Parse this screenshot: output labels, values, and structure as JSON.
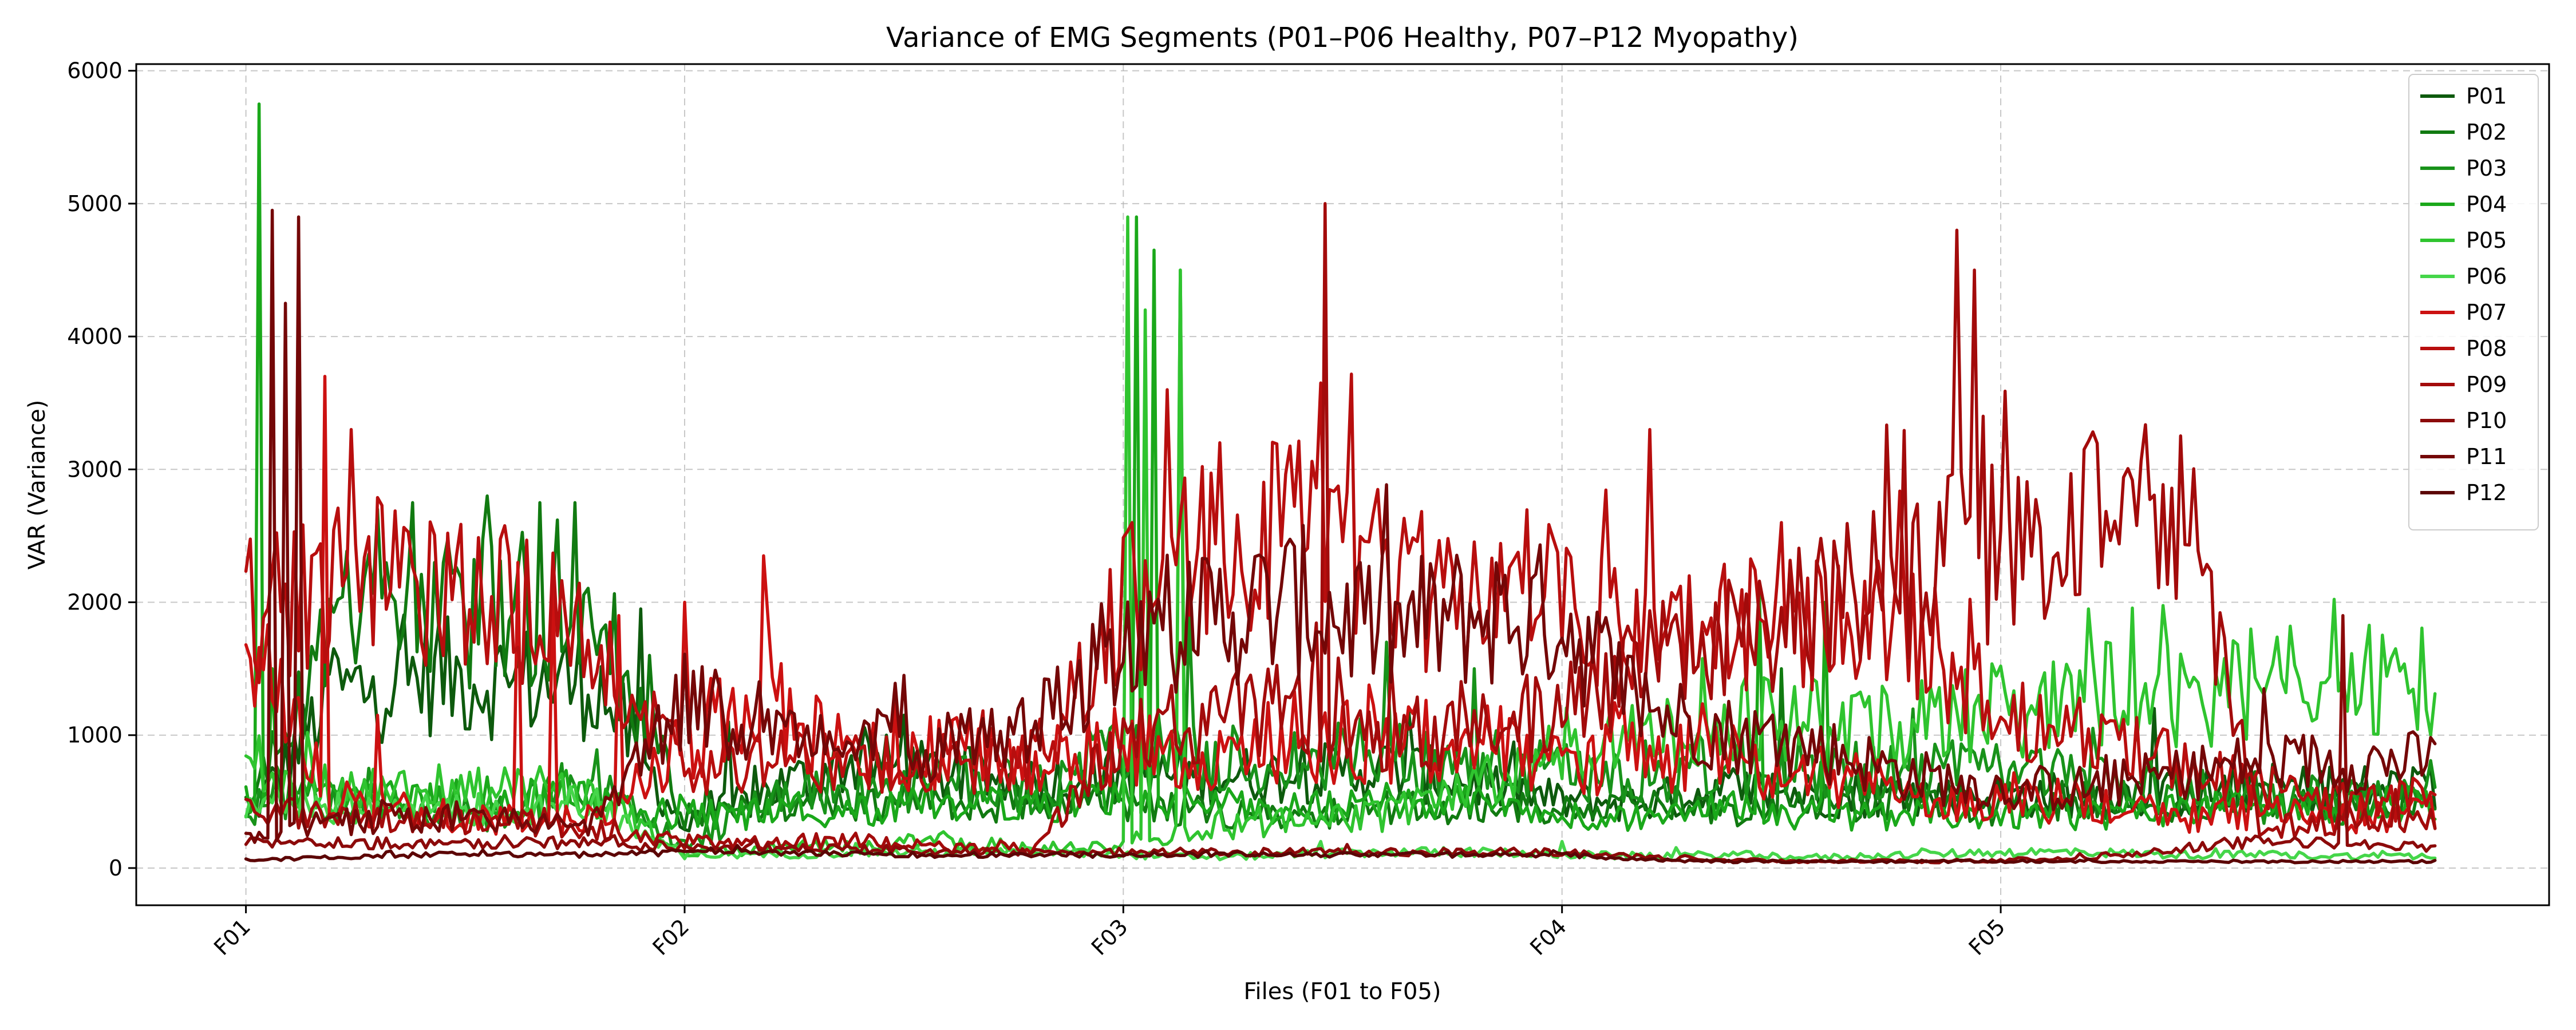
{
  "chart_data": {
    "type": "line",
    "title": "Variance of EMG Segments (P01–P06 Healthy, P07–P12 Myopathy)",
    "xlabel": "Files (F01 to F05)",
    "ylabel": "VAR (Variance)",
    "x_ticks": [
      "F01",
      "F02",
      "F03",
      "F04",
      "F05"
    ],
    "x_tick_positions": [
      0,
      100,
      200,
      300,
      400
    ],
    "xlim": [
      -25,
      525
    ],
    "ylim": [
      -280,
      6050
    ],
    "y_ticks": [
      0,
      1000,
      2000,
      3000,
      4000,
      5000,
      6000
    ],
    "grid": true,
    "legend_position": "top-right",
    "series": [
      {
        "name": "P01",
        "color": "#0d5a0d",
        "base": [
          350,
          1300,
          1450,
          1400,
          1400,
          300,
          600,
          800,
          700,
          650,
          700,
          700,
          700,
          750,
          650,
          500,
          500,
          600,
          550,
          550,
          550,
          550,
          550,
          600,
          600,
          600
        ],
        "amp": 0.32,
        "spikes": [
          [
            20,
            1650
          ],
          [
            44,
            1850
          ],
          [
            90,
            1950
          ],
          [
            110,
            1100
          ],
          [
            150,
            1150
          ],
          [
            265,
            1200
          ],
          [
            435,
            1200
          ]
        ]
      },
      {
        "name": "P02",
        "color": "#117a11",
        "base": [
          420,
          1900,
          1900,
          1950,
          1950,
          400,
          500,
          450,
          500,
          480,
          500,
          420,
          400,
          450,
          450,
          450,
          500,
          450,
          500,
          500,
          450,
          520,
          500,
          500,
          480,
          480
        ],
        "amp": 0.3,
        "spikes": [
          [
            30,
            2700
          ],
          [
            38,
            2750
          ],
          [
            55,
            2800
          ],
          [
            67,
            2750
          ],
          [
            75,
            2750
          ],
          [
            92,
            1600
          ],
          [
            350,
            1500
          ]
        ]
      },
      {
        "name": "P03",
        "color": "#18921a",
        "base": [
          480,
          500,
          420,
          400,
          700,
          150,
          550,
          600,
          650,
          600,
          900,
          800,
          800,
          850,
          800,
          700,
          700,
          800,
          700,
          750,
          700,
          700,
          600,
          500,
          500,
          500
        ],
        "amp": 0.35,
        "spikes": [
          [
            28,
            750
          ],
          [
            215,
            1900
          ],
          [
            260,
            1700
          ],
          [
            280,
            1500
          ]
        ]
      },
      {
        "name": "P04",
        "color": "#1aa81a",
        "base": [
          600,
          550,
          500,
          550,
          500,
          400,
          400,
          450,
          500,
          480,
          550,
          500,
          450,
          500,
          500,
          400,
          400,
          450,
          400,
          400,
          400,
          400,
          450,
          450,
          500,
          500
        ],
        "amp": 0.3,
        "spikes": [
          [
            3,
            5750
          ],
          [
            6,
            1500
          ],
          [
            203,
            4900
          ],
          [
            207,
            4650
          ],
          [
            213,
            4500
          ],
          [
            345,
            2100
          ],
          [
            360,
            2000
          ]
        ]
      },
      {
        "name": "P05",
        "color": "#2fc42f",
        "base": [
          700,
          600,
          550,
          600,
          550,
          100,
          150,
          180,
          200,
          150,
          150,
          300,
          350,
          400,
          600,
          900,
          1000,
          1100,
          1100,
          1100,
          1200,
          1300,
          1300,
          1400,
          1400,
          1400
        ],
        "amp": 0.32,
        "spikes": [
          [
            201,
            4900
          ],
          [
            205,
            4200
          ],
          [
            213,
            4500
          ],
          [
            420,
            1950
          ],
          [
            490,
            1650
          ],
          [
            498,
            1000
          ]
        ]
      },
      {
        "name": "P06",
        "color": "#45d64a",
        "base": [
          500,
          450,
          420,
          450,
          500,
          100,
          100,
          120,
          120,
          120,
          100,
          80,
          100,
          120,
          120,
          100,
          90,
          100,
          80,
          100,
          120,
          120,
          100,
          100,
          90,
          90
        ],
        "amp": 0.3,
        "spikes": [
          [
            245,
            200
          ],
          [
            300,
            200
          ]
        ]
      },
      {
        "name": "P07",
        "color": "#cc1111",
        "base": [
          1800,
          500,
          400,
          350,
          350,
          1000,
          1200,
          800,
          900,
          800,
          900,
          800,
          1000,
          900,
          1000,
          800,
          900,
          800,
          700,
          600,
          500,
          500,
          400,
          400,
          400,
          400
        ],
        "amp": 0.35,
        "spikes": [
          [
            18,
            3700
          ],
          [
            30,
            1150
          ],
          [
            62,
            2300
          ],
          [
            70,
            2200
          ],
          [
            85,
            1900
          ],
          [
            100,
            2000
          ],
          [
            118,
            2350
          ]
        ]
      },
      {
        "name": "P08",
        "color": "#b80e0e",
        "base": [
          1900,
          2200,
          2100,
          2000,
          1800,
          700,
          800,
          800,
          800,
          800,
          2000,
          2500,
          2500,
          2200,
          2000,
          2000,
          1800,
          1800,
          1800,
          1800,
          1200,
          1000,
          800,
          600,
          500,
          500
        ],
        "amp": 0.3,
        "spikes": [
          [
            24,
            3300
          ],
          [
            210,
            3600
          ],
          [
            222,
            3200
          ],
          [
            245,
            3650
          ],
          [
            320,
            3300
          ],
          [
            350,
            2600
          ]
        ]
      },
      {
        "name": "P09",
        "color": "#a30b0b",
        "base": [
          400,
          400,
          350,
          350,
          300,
          200,
          200,
          200,
          150,
          150,
          1000,
          1100,
          1200,
          1000,
          1000,
          1200,
          1500,
          1800,
          2000,
          2200,
          2400,
          2500,
          3000,
          300,
          350,
          400
        ],
        "amp": 0.3,
        "spikes": [
          [
            246,
            5000
          ],
          [
            390,
            4800
          ],
          [
            394,
            4500
          ],
          [
            396,
            3400
          ]
        ]
      },
      {
        "name": "P10",
        "color": "#8c0a0a",
        "base": [
          200,
          200,
          180,
          200,
          180,
          150,
          150,
          150,
          120,
          120,
          120,
          120,
          120,
          120,
          120,
          120,
          80,
          60,
          50,
          50,
          60,
          80,
          150,
          200,
          180,
          150
        ],
        "amp": 0.25,
        "spikes": [
          [
            478,
            1900
          ]
        ]
      },
      {
        "name": "P11",
        "color": "#740707",
        "base": [
          250,
          350,
          380,
          350,
          350,
          1200,
          1100,
          1000,
          900,
          1000,
          1800,
          1900,
          2000,
          1800,
          1900,
          1900,
          1200,
          1000,
          900,
          700,
          600,
          600,
          700,
          800,
          800,
          800
        ],
        "amp": 0.3,
        "spikes": [
          [
            6,
            4950
          ],
          [
            9,
            4250
          ],
          [
            12,
            4900
          ],
          [
            150,
            1450
          ],
          [
            262,
            2000
          ],
          [
            460,
            1350
          ]
        ]
      },
      {
        "name": "P12",
        "color": "#5c0505",
        "base": [
          60,
          80,
          100,
          100,
          100,
          120,
          120,
          100,
          100,
          100,
          100,
          100,
          100,
          100,
          100,
          100,
          60,
          50,
          50,
          50,
          50,
          50,
          50,
          50,
          50,
          50
        ],
        "amp": 0.2,
        "spikes": []
      }
    ]
  }
}
